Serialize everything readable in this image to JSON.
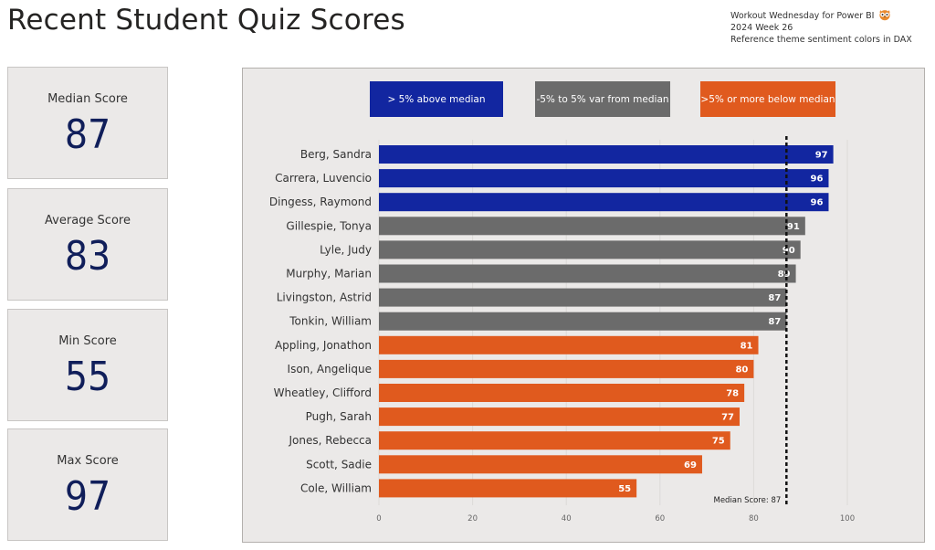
{
  "title": "Recent Student Quiz Scores",
  "note": {
    "line1": "Workout Wednesday for Power BI",
    "line2": "2024 Week 26",
    "line3": "Reference theme sentiment colors in DAX",
    "icon": "owl-icon"
  },
  "cards": [
    {
      "label": "Median Score",
      "value": "87"
    },
    {
      "label": "Average Score",
      "value": "83"
    },
    {
      "label": "Min Score",
      "value": "55"
    },
    {
      "label": "Max Score",
      "value": "97"
    }
  ],
  "legend": [
    {
      "label": "> 5% above median",
      "color": "#1226a0"
    },
    {
      "label": "-5% to 5% var from median",
      "color": "#6b6b6b"
    },
    {
      "label": ">5% or more below median",
      "color": "#e05a1e"
    }
  ],
  "chart_data": {
    "type": "bar",
    "orientation": "horizontal",
    "categories": [
      "Berg, Sandra",
      "Carrera, Luvencio",
      "Dingess, Raymond",
      "Gillespie, Tonya",
      "Lyle, Judy",
      "Murphy, Marian",
      "Livingston, Astrid",
      "Tonkin, William",
      "Appling, Jonathon",
      "Ison, Angelique",
      "Wheatley, Clifford",
      "Pugh, Sarah",
      "Jones, Rebecca",
      "Scott, Sadie",
      "Cole, William"
    ],
    "values": [
      97,
      96,
      96,
      91,
      90,
      89,
      87,
      87,
      81,
      80,
      78,
      77,
      75,
      69,
      55
    ],
    "groups": [
      "above",
      "above",
      "above",
      "mid",
      "mid",
      "mid",
      "mid",
      "mid",
      "below",
      "below",
      "below",
      "below",
      "below",
      "below",
      "below"
    ],
    "colors": {
      "above": "#1226a0",
      "mid": "#6b6b6b",
      "below": "#e05a1e"
    },
    "xlim": [
      0,
      100
    ],
    "xticks": [
      0,
      20,
      40,
      60,
      80,
      100
    ],
    "median": 87,
    "median_label": "Median Score: 87",
    "data_labels": true,
    "grid": true
  }
}
